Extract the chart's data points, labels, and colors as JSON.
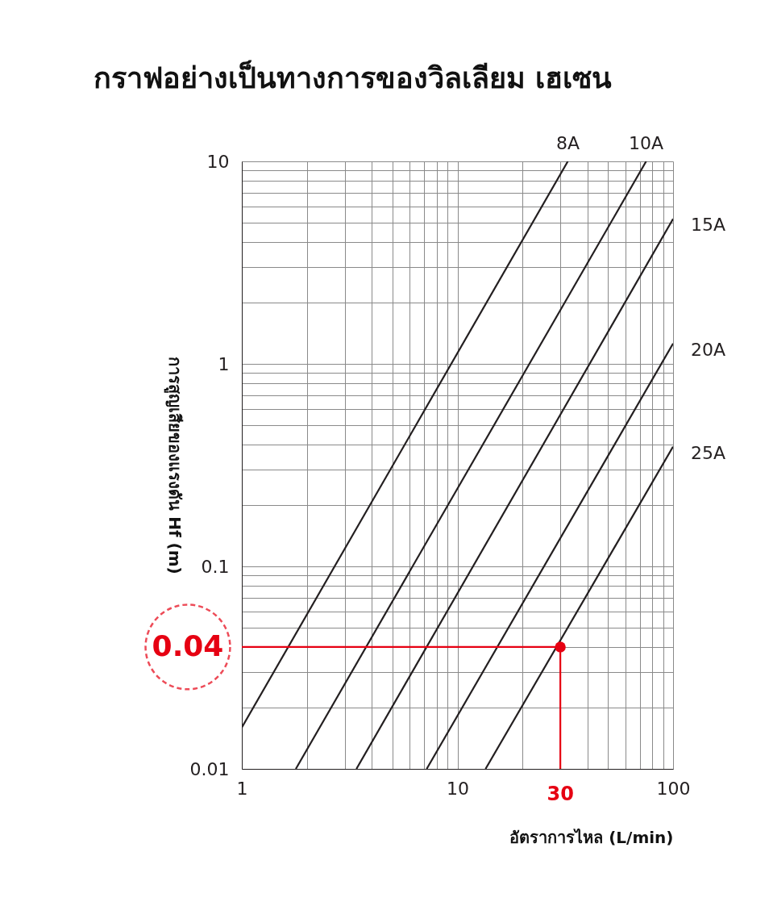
{
  "chart_data": {
    "type": "line",
    "title": "กราฟอย่างเป็นทางการของวิลเลียม เฮเซน",
    "xlabel": "อัตราการไหล (L/min)",
    "ylabel": "การสูญเสียของแรงดัน Hf (m)",
    "log": "xy",
    "grid": true,
    "legend": false,
    "line_style": "solid",
    "xlim": [
      1,
      100
    ],
    "ylim": [
      0.01,
      10
    ],
    "xticks": [
      1,
      {
        "value": 2,
        "label": null
      },
      {
        "value": 3,
        "label": null
      },
      {
        "value": 4,
        "label": null
      },
      {
        "value": 5,
        "label": null
      },
      {
        "value": 6,
        "label": null
      },
      {
        "value": 7,
        "label": null
      },
      {
        "value": 8,
        "label": null
      },
      {
        "value": 9,
        "label": null
      },
      10,
      {
        "value": 20,
        "label": null
      },
      {
        "value": 30,
        "label": null
      },
      {
        "value": 40,
        "label": null
      },
      {
        "value": 50,
        "label": null
      },
      {
        "value": 60,
        "label": null
      },
      {
        "value": 70,
        "label": null
      },
      {
        "value": 80,
        "label": null
      },
      {
        "value": 90,
        "label": null
      },
      100
    ],
    "yticks": [
      0.01,
      {
        "value": 0.02,
        "label": null
      },
      {
        "value": 0.03,
        "label": null
      },
      {
        "value": 0.04,
        "label": null
      },
      {
        "value": 0.05,
        "label": null
      },
      {
        "value": 0.06,
        "label": null
      },
      {
        "value": 0.07,
        "label": null
      },
      {
        "value": 0.08,
        "label": null
      },
      {
        "value": 0.09,
        "label": null
      },
      0.1,
      {
        "value": 0.2,
        "label": null
      },
      {
        "value": 0.3,
        "label": null
      },
      {
        "value": 0.4,
        "label": null
      },
      {
        "value": 0.5,
        "label": null
      },
      {
        "value": 0.6,
        "label": null
      },
      {
        "value": 0.7,
        "label": null
      },
      {
        "value": 0.8,
        "label": null
      },
      {
        "value": 0.9,
        "label": null
      },
      1,
      {
        "value": 2,
        "label": null
      },
      {
        "value": 3,
        "label": null
      },
      {
        "value": 4,
        "label": null
      },
      {
        "value": 5,
        "label": null
      },
      {
        "value": 6,
        "label": null
      },
      {
        "value": 7,
        "label": null
      },
      {
        "value": 8,
        "label": null
      },
      {
        "value": 9,
        "label": null
      },
      10
    ],
    "series": [
      {
        "name": "8A",
        "color": "#231f20",
        "x": [
          1,
          32.5
        ],
        "values": [
          0.016,
          10
        ]
      },
      {
        "name": "10A",
        "color": "#231f20",
        "x": [
          1.78,
          75
        ],
        "values": [
          0.01,
          10
        ]
      },
      {
        "name": "15A",
        "color": "#231f20",
        "x": [
          3.4,
          100
        ],
        "values": [
          0.01,
          5.2
        ]
      },
      {
        "name": "20A",
        "color": "#231f20",
        "x": [
          7.2,
          100
        ],
        "values": [
          0.01,
          1.26
        ]
      },
      {
        "name": "25A",
        "color": "#231f20",
        "x": [
          13.5,
          100
        ],
        "values": [
          0.01,
          0.39
        ]
      },
      {
        "type": "scatter",
        "marker": "circle",
        "color": "#e60012",
        "x": [
          30
        ],
        "values": [
          0.04
        ]
      }
    ],
    "ref_lines": [
      {
        "axis": "y",
        "value": 0.04,
        "label": "0.04",
        "color": "#e60012"
      },
      {
        "axis": "x",
        "value": 30,
        "label": "30",
        "color": "#e60012"
      }
    ]
  }
}
